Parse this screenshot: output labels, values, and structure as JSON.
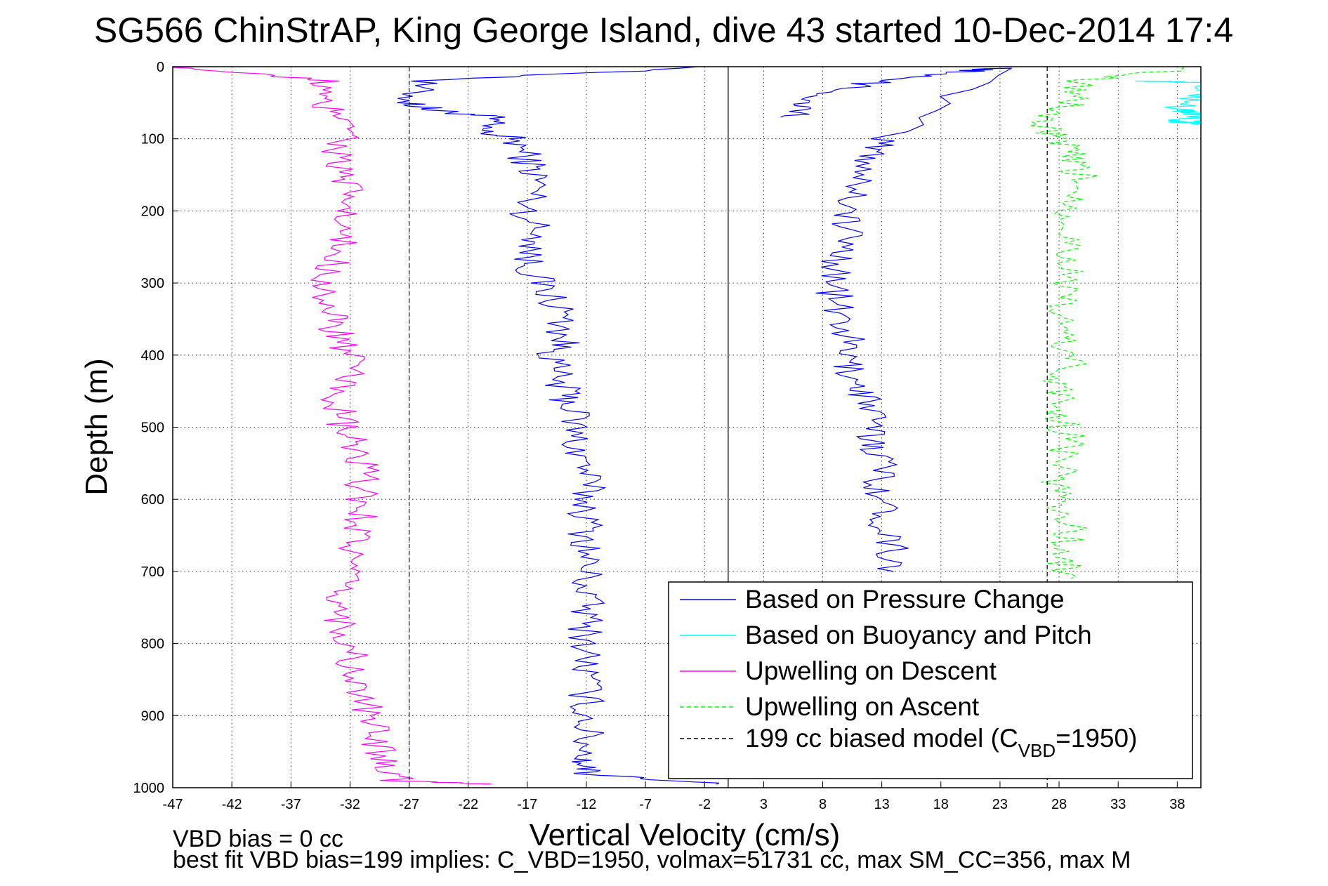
{
  "chart_data": {
    "type": "line",
    "title": "SG566 ChinStrAP, King George Island, dive 43 started 10-Dec-2014 17:4",
    "xlabel": "Vertical Velocity (cm/s)",
    "ylabel": "Depth (m)",
    "xlim": [
      -47,
      40
    ],
    "ylim": [
      0,
      1000
    ],
    "y_reversed": true,
    "grid": true,
    "legend_position": "bottom-right",
    "x_ticks": [
      "-47",
      "-42",
      "-37",
      "-32",
      "-27",
      "-22",
      "-17",
      "-12",
      "-7",
      "-2",
      "3",
      "8",
      "13",
      "18",
      "23",
      "28",
      "33",
      "38"
    ],
    "y_ticks": [
      "0",
      "100",
      "200",
      "300",
      "400",
      "500",
      "600",
      "700",
      "800",
      "900",
      "1000"
    ],
    "annotations": [
      "VBD bias = 0 cc",
      "best fit VBD bias=199 implies: C_VBD=1950, volmax=51731 cc, max SM_CC=356, max M"
    ],
    "legend": [
      {
        "label": "Based on Pressure Change",
        "color": "#0000ff",
        "style": "solid"
      },
      {
        "label": "Based on Buoyancy and Pitch",
        "color": "#00ffff",
        "style": "solid"
      },
      {
        "label": "Upwelling on Descent",
        "color": "#ff00ff",
        "style": "solid"
      },
      {
        "label": "Upwelling on Ascent",
        "color": "#00ff00",
        "style": "dashed"
      },
      {
        "label_pre": "199 cc biased model (C",
        "label_sub": "VBD",
        "label_post": "=1950)",
        "color": "#000000",
        "style": "dashed"
      }
    ],
    "series": [
      {
        "name": "Based on Pressure Change",
        "color": "#0000ff",
        "dash": false,
        "points": [
          [
            -1,
            0
          ],
          [
            -26,
            20
          ],
          [
            -27,
            50
          ],
          [
            -25,
            60
          ],
          [
            -20,
            70
          ],
          [
            -21,
            90
          ],
          [
            -18,
            100
          ],
          [
            -17,
            130
          ],
          [
            -16,
            160
          ],
          [
            -17,
            200
          ],
          [
            -16,
            240
          ],
          [
            -17,
            270
          ],
          [
            -16,
            300
          ],
          [
            -14,
            340
          ],
          [
            -14,
            380
          ],
          [
            -15,
            410
          ],
          [
            -14,
            450
          ],
          [
            -13,
            480
          ],
          [
            -13,
            520
          ],
          [
            -12,
            560
          ],
          [
            -12,
            600
          ],
          [
            -12,
            640
          ],
          [
            -12,
            680
          ],
          [
            -12,
            720
          ],
          [
            -12,
            760
          ],
          [
            -12,
            800
          ],
          [
            -12,
            840
          ],
          [
            -12,
            880
          ],
          [
            -12,
            920
          ],
          [
            -12,
            960
          ],
          [
            -12,
            980
          ],
          [
            -1,
            995
          ]
        ]
      },
      {
        "name": "Based on Pressure Change (ascent)",
        "color": "#0000ff",
        "dash": false,
        "points": [
          [
            6,
            70
          ],
          [
            7,
            50
          ],
          [
            11,
            25
          ],
          [
            18,
            10
          ],
          [
            23,
            2
          ],
          [
            13,
            100
          ],
          [
            12,
            130
          ],
          [
            11,
            170
          ],
          [
            10,
            210
          ],
          [
            10,
            250
          ],
          [
            9,
            290
          ],
          [
            9,
            330
          ],
          [
            10,
            370
          ],
          [
            10,
            410
          ],
          [
            11,
            440
          ],
          [
            12,
            470
          ],
          [
            12,
            510
          ],
          [
            13,
            540
          ],
          [
            13,
            580
          ],
          [
            13,
            620
          ],
          [
            14,
            660
          ],
          [
            14,
            700
          ]
        ]
      },
      {
        "name": "Based on Buoyancy and Pitch",
        "color": "#00ffff",
        "dash": false,
        "points": [
          [
            36,
            20
          ],
          [
            40,
            22
          ],
          [
            40,
            40
          ],
          [
            38,
            60
          ],
          [
            40,
            65
          ],
          [
            38,
            75
          ],
          [
            40,
            80
          ],
          [
            40,
            75
          ]
        ]
      },
      {
        "name": "Upwelling on Descent",
        "color": "#ff00ff",
        "dash": false,
        "points": [
          [
            -47,
            0
          ],
          [
            -34,
            20
          ],
          [
            -35,
            50
          ],
          [
            -31,
            80
          ],
          [
            -33,
            110
          ],
          [
            -33,
            150
          ],
          [
            -32,
            180
          ],
          [
            -33,
            220
          ],
          [
            -33,
            260
          ],
          [
            -34,
            300
          ],
          [
            -34,
            340
          ],
          [
            -33,
            370
          ],
          [
            -32,
            410
          ],
          [
            -33,
            450
          ],
          [
            -33,
            490
          ],
          [
            -32,
            520
          ],
          [
            -31,
            560
          ],
          [
            -31,
            600
          ],
          [
            -31,
            640
          ],
          [
            -32,
            680
          ],
          [
            -33,
            720
          ],
          [
            -33,
            760
          ],
          [
            -32,
            800
          ],
          [
            -32,
            840
          ],
          [
            -31,
            880
          ],
          [
            -30,
            920
          ],
          [
            -29,
            960
          ],
          [
            -28,
            990
          ],
          [
            -20,
            995
          ]
        ]
      },
      {
        "name": "Upwelling on Ascent",
        "color": "#00ff00",
        "dash": true,
        "points": [
          [
            40,
            0
          ],
          [
            30,
            20
          ],
          [
            29,
            50
          ],
          [
            26,
            80
          ],
          [
            28,
            100
          ],
          [
            29,
            130
          ],
          [
            30,
            160
          ],
          [
            29,
            200
          ],
          [
            29,
            240
          ],
          [
            29,
            280
          ],
          [
            28,
            320
          ],
          [
            28,
            360
          ],
          [
            29,
            400
          ],
          [
            28,
            440
          ],
          [
            28,
            480
          ],
          [
            29,
            520
          ],
          [
            28,
            560
          ],
          [
            28,
            600
          ],
          [
            29,
            640
          ],
          [
            28,
            680
          ],
          [
            29,
            710
          ]
        ]
      },
      {
        "name": "199 cc biased model",
        "color": "#000000",
        "dash": true,
        "points": [
          [
            -27,
            0
          ],
          [
            -27,
            1000
          ]
        ]
      },
      {
        "name": "199 cc biased model (ascent)",
        "color": "#000000",
        "dash": true,
        "points": [
          [
            27,
            0
          ],
          [
            27,
            1000
          ]
        ]
      }
    ],
    "zero_line_x": 0
  }
}
